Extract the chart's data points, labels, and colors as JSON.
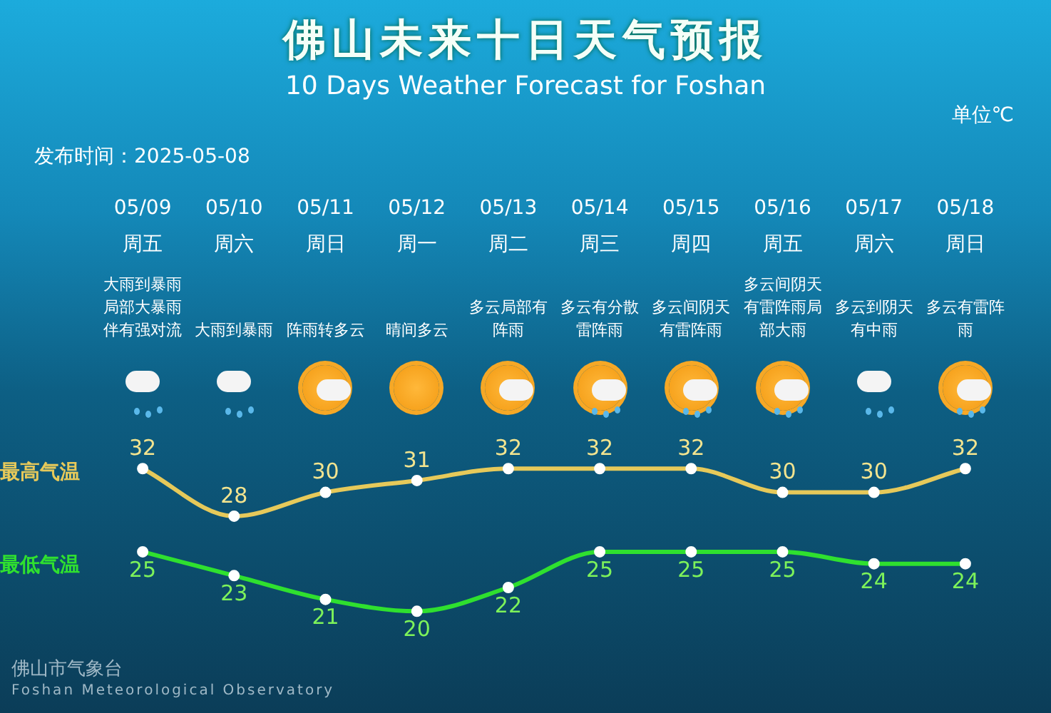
{
  "chart_data": {
    "type": "line",
    "title": "佛山未来十日天气预报",
    "subtitle": "10 Days Weather Forecast for Foshan",
    "categories": [
      "05/09",
      "05/10",
      "05/11",
      "05/12",
      "05/13",
      "05/14",
      "05/15",
      "05/16",
      "05/17",
      "05/18"
    ],
    "series": [
      {
        "name": "最高气温",
        "color": "#e6c95a",
        "values": [
          32,
          28,
          30,
          31,
          32,
          32,
          32,
          30,
          30,
          32
        ]
      },
      {
        "name": "最低气温",
        "color": "#2fe02f",
        "values": [
          25,
          23,
          21,
          20,
          22,
          25,
          25,
          25,
          24,
          24
        ]
      }
    ],
    "tick_labels": "x",
    "grid": false,
    "legend": false,
    "marker": "circle",
    "line_style": "solid",
    "data_labels": true,
    "annotations": [
      "单位℃",
      "发布时间：2025-05-08",
      "佛山市气象台",
      "Foshan Meteorological Observatory",
      "周五",
      "周六",
      "周日",
      "周一",
      "周二",
      "周三",
      "周四",
      "周五",
      "周六",
      "周日",
      "大雨到暴雨局部大暴雨伴有强对流",
      "大雨到暴雨",
      "阵雨转多云",
      "晴间多云",
      "多云局部有阵雨",
      "多云有分散雷阵雨",
      "多云间阴天有雷阵雨",
      "多云间阴天有雷阵雨局部大雨",
      "多云到阴天有中雨",
      "多云有雷阵雨"
    ]
  }
}
